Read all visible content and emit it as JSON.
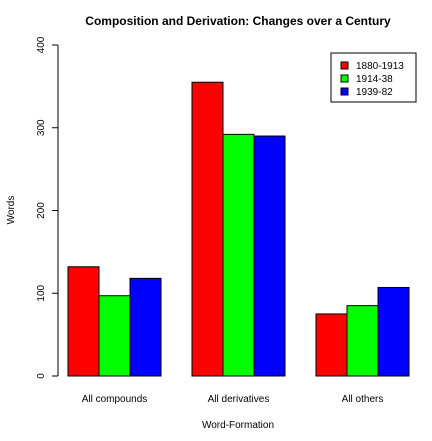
{
  "chart_data": {
    "type": "bar",
    "title": "Composition and Derivation: Changes over a Century",
    "xlabel": "Word-Formation",
    "ylabel": "Words",
    "categories": [
      "All compounds",
      "All derivatives",
      "All others"
    ],
    "series": [
      {
        "name": "1880-1913",
        "color": "#ff0000",
        "values": [
          132,
          355,
          75
        ]
      },
      {
        "name": "1914-38",
        "color": "#00ff00",
        "values": [
          97,
          292,
          85
        ]
      },
      {
        "name": "1939-82",
        "color": "#0000ff",
        "values": [
          118,
          290,
          107
        ]
      }
    ],
    "ylim": [
      0,
      400
    ],
    "yticks": [
      "0",
      "100",
      "200",
      "300",
      "400"
    ],
    "grid": false,
    "legend_position": "top-right"
  }
}
